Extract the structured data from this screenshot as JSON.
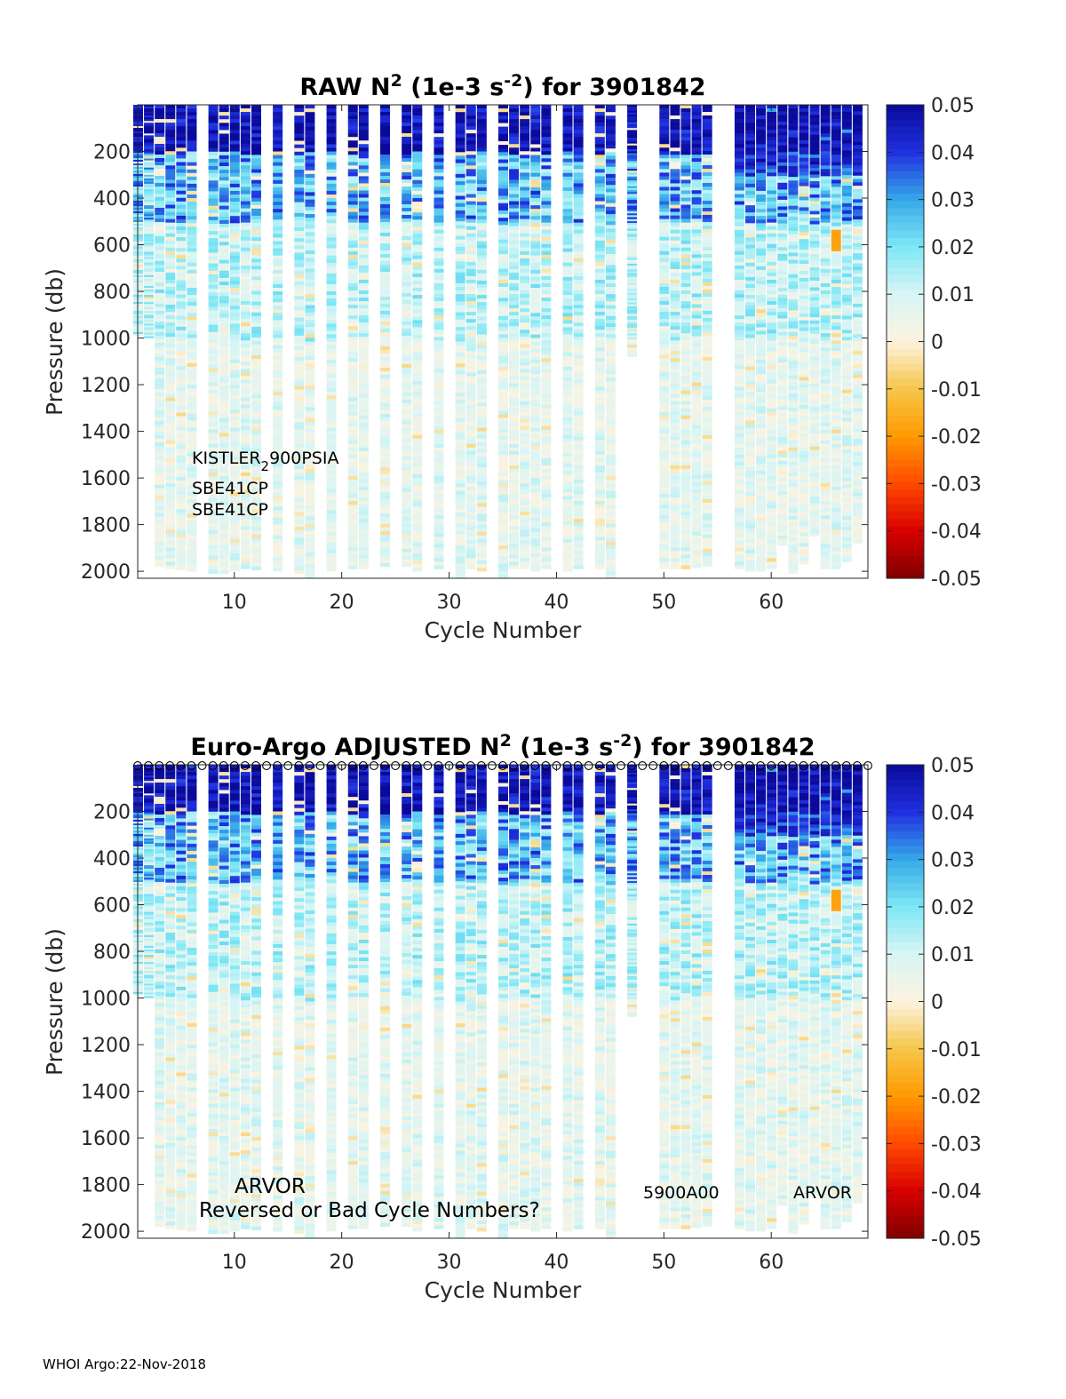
{
  "footer": "WHOI Argo:22-Nov-2018",
  "colormap": [
    "#7f0000",
    "#d80000",
    "#ff4a00",
    "#ff9a00",
    "#f6c64a",
    "#fdf3df",
    "#d8f5f5",
    "#7ee7f5",
    "#35a8e8",
    "#2030e0",
    "#0a0a9a"
  ],
  "chart_data": [
    {
      "type": "heatmap",
      "title": "RAW N² (1e-3 s⁻²) for 3901842",
      "title_parts": {
        "pre": "RAW N",
        "sup1": "2",
        "mid": " (1e-3 s",
        "sup2": "-2",
        "post": ") for 3901842"
      },
      "xlabel": "Cycle Number",
      "ylabel": "Pressure (db)",
      "xlim": [
        1,
        69
      ],
      "ylim": [
        2030,
        0
      ],
      "x_ticks": [
        10,
        20,
        30,
        40,
        50,
        60
      ],
      "y_ticks": [
        200,
        400,
        600,
        800,
        1000,
        1200,
        1400,
        1600,
        1800,
        2000
      ],
      "colorbar": {
        "min": -0.05,
        "max": 0.05,
        "ticks": [
          "0.05",
          "0.04",
          "0.03",
          "0.02",
          "0.01",
          "0",
          "-0.01",
          "-0.02",
          "-0.03",
          "-0.04",
          "-0.05"
        ]
      },
      "annotations": [
        "KISTLER",
        "2",
        "900PSIA",
        "SBE41CP",
        "SBE41CP"
      ]
    },
    {
      "type": "heatmap",
      "title": "Euro-Argo  ADJUSTED N² (1e-3 s⁻²) for 3901842",
      "title_parts": {
        "pre": "Euro-Argo  ADJUSTED N",
        "sup1": "2",
        "mid": " (1e-3 s",
        "sup2": "-2",
        "post": ") for 3901842"
      },
      "xlabel": "Cycle Number",
      "ylabel": "Pressure (db)",
      "xlim": [
        1,
        69
      ],
      "ylim": [
        2030,
        0
      ],
      "x_ticks": [
        10,
        20,
        30,
        40,
        50,
        60
      ],
      "y_ticks": [
        200,
        400,
        600,
        800,
        1000,
        1200,
        1400,
        1600,
        1800,
        2000
      ],
      "colorbar": {
        "min": -0.05,
        "max": 0.05,
        "ticks": [
          "0.05",
          "0.04",
          "0.03",
          "0.02",
          "0.01",
          "0",
          "-0.01",
          "-0.02",
          "-0.03",
          "-0.04",
          "-0.05"
        ]
      },
      "annotations": [
        "ARVOR",
        "Reversed or Bad Cycle Numbers?",
        "5900A00",
        "ARVOR"
      ],
      "top_markers": "o"
    }
  ],
  "profiles": [
    {
      "cycle": 1,
      "max_p": 990
    },
    {
      "cycle": 2,
      "max_p": 1000
    },
    {
      "cycle": 3,
      "max_p": 1980
    },
    {
      "cycle": 4,
      "max_p": 1990
    },
    {
      "cycle": 5,
      "max_p": 1995
    },
    {
      "cycle": 6,
      "max_p": 2000
    },
    {
      "cycle": 8,
      "max_p": 2010
    },
    {
      "cycle": 9,
      "max_p": 2010
    },
    {
      "cycle": 10,
      "max_p": 2000
    },
    {
      "cycle": 11,
      "max_p": 1990
    },
    {
      "cycle": 12,
      "max_p": 1995
    },
    {
      "cycle": 14,
      "max_p": 2000
    },
    {
      "cycle": 16,
      "max_p": 2010
    },
    {
      "cycle": 17,
      "max_p": 2030
    },
    {
      "cycle": 19,
      "max_p": 2000
    },
    {
      "cycle": 21,
      "max_p": 1990
    },
    {
      "cycle": 22,
      "max_p": 1990
    },
    {
      "cycle": 24,
      "max_p": 1980
    },
    {
      "cycle": 26,
      "max_p": 1980
    },
    {
      "cycle": 27,
      "max_p": 2000
    },
    {
      "cycle": 29,
      "max_p": 1990
    },
    {
      "cycle": 31,
      "max_p": 2030
    },
    {
      "cycle": 32,
      "max_p": 1990
    },
    {
      "cycle": 33,
      "max_p": 2000
    },
    {
      "cycle": 35,
      "max_p": 2030
    },
    {
      "cycle": 36,
      "max_p": 1990
    },
    {
      "cycle": 37,
      "max_p": 1990
    },
    {
      "cycle": 38,
      "max_p": 2000
    },
    {
      "cycle": 39,
      "max_p": 1990
    },
    {
      "cycle": 41,
      "max_p": 2000
    },
    {
      "cycle": 42,
      "max_p": 1990
    },
    {
      "cycle": 44,
      "max_p": 1990
    },
    {
      "cycle": 45,
      "max_p": 2030
    },
    {
      "cycle": 47,
      "max_p": 1080
    },
    {
      "cycle": 50,
      "max_p": 1990
    },
    {
      "cycle": 51,
      "max_p": 1990
    },
    {
      "cycle": 52,
      "max_p": 1990
    },
    {
      "cycle": 53,
      "max_p": 1985
    },
    {
      "cycle": 54,
      "max_p": 1980
    },
    {
      "cycle": 57,
      "max_p": 1990
    },
    {
      "cycle": 58,
      "max_p": 2000
    },
    {
      "cycle": 59,
      "max_p": 2000
    },
    {
      "cycle": 60,
      "max_p": 1990
    },
    {
      "cycle": 61,
      "max_p": 1890
    },
    {
      "cycle": 62,
      "max_p": 2010
    },
    {
      "cycle": 63,
      "max_p": 1970
    },
    {
      "cycle": 64,
      "max_p": 1850
    },
    {
      "cycle": 65,
      "max_p": 1990
    },
    {
      "cycle": 66,
      "max_p": 1990
    },
    {
      "cycle": 67,
      "max_p": 1960
    },
    {
      "cycle": 68,
      "max_p": 1880
    }
  ]
}
